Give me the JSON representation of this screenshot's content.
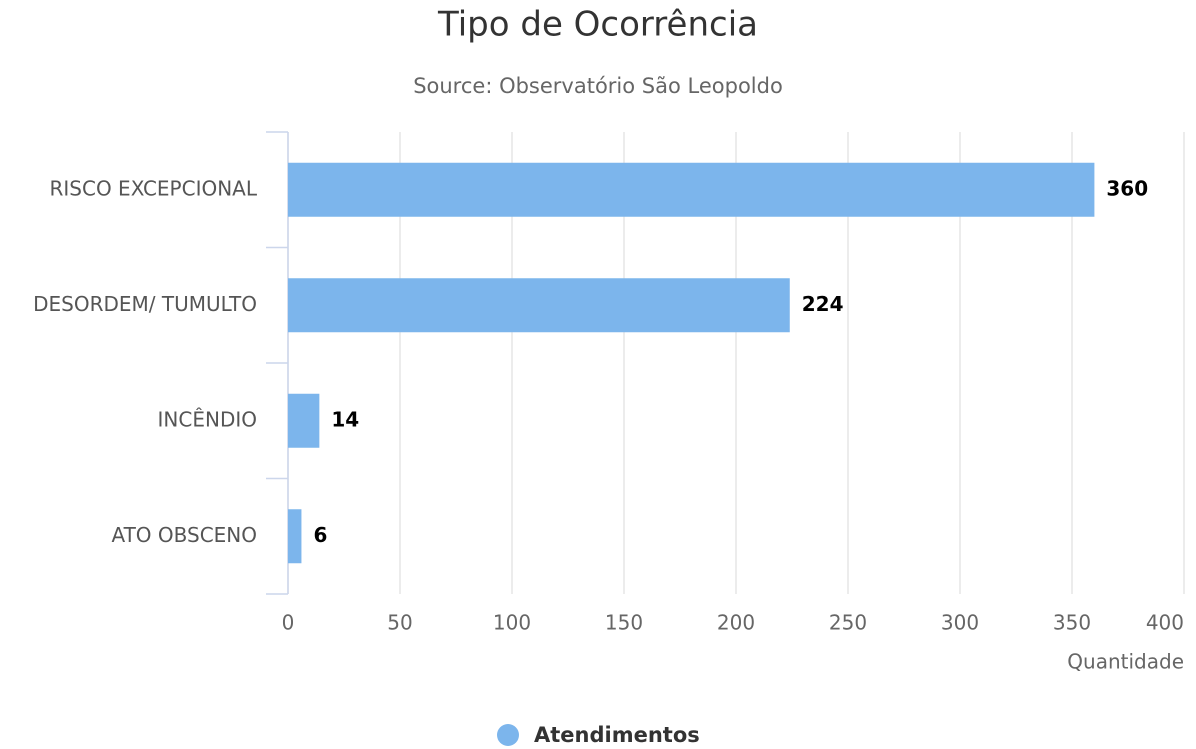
{
  "chart_data": {
    "type": "bar",
    "orientation": "horizontal",
    "title": "Tipo de Ocorrência",
    "subtitle": "Source: Observatório São Leopoldo",
    "categories": [
      "RISCO EXCEPCIONAL",
      "DESORDEM/ TUMULTO",
      "INCÊNDIO",
      "ATO OBSCENO"
    ],
    "series": [
      {
        "name": "Atendimentos",
        "color": "#7cb5ec",
        "values": [
          360,
          224,
          14,
          6
        ]
      }
    ],
    "xlabel": "Quantidade",
    "xlim": [
      0,
      400
    ],
    "xticks": [
      0,
      50,
      100,
      150,
      200,
      250,
      300,
      350,
      400
    ],
    "grid": true,
    "legend": "bottom"
  }
}
